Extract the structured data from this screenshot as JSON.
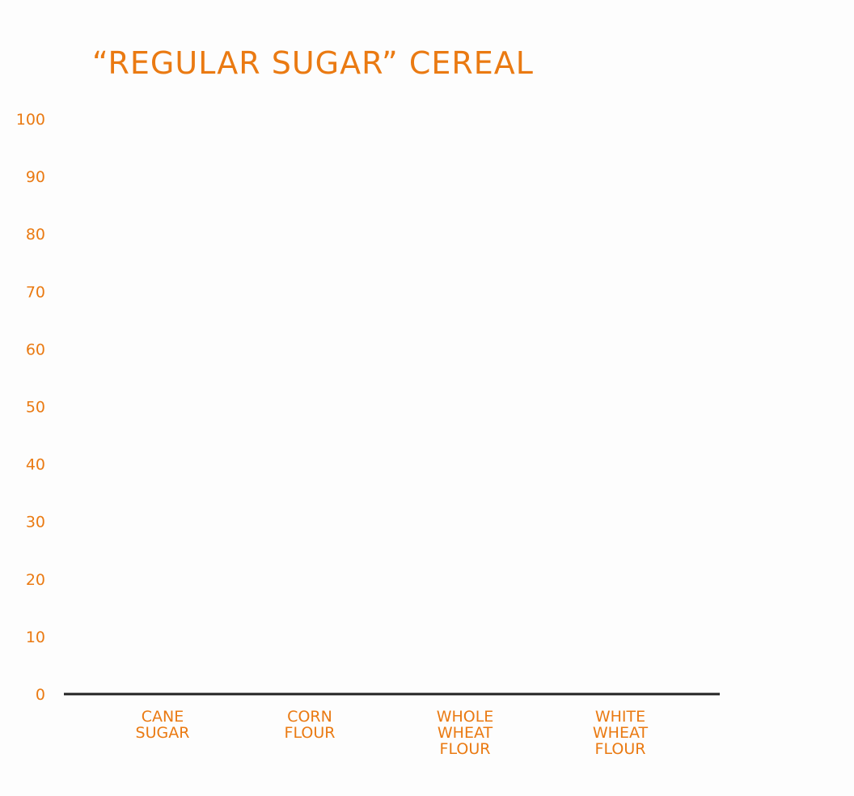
{
  "colors": {
    "text": "#ea7a12",
    "axis": "#222222",
    "background": "#fdfdfd"
  },
  "chart_data": {
    "type": "bar",
    "title": "“REGULAR SUGAR” CEREAL",
    "xlabel": "",
    "ylabel": "",
    "ylim": [
      0,
      100
    ],
    "yticks": [
      0,
      10,
      20,
      30,
      40,
      50,
      60,
      70,
      80,
      90,
      100
    ],
    "ytick_labels": [
      "0",
      "10",
      "20",
      "30",
      "40",
      "50",
      "60",
      "70",
      "80",
      "90",
      "100"
    ],
    "categories": [
      [
        "CANE",
        "SUGAR"
      ],
      [
        "CORN",
        "FLOUR"
      ],
      [
        "WHOLE",
        "WHEAT",
        "FLOUR"
      ],
      [
        "WHITE",
        "WHEAT",
        "FLOUR"
      ]
    ],
    "values": [
      0,
      0,
      0,
      0
    ],
    "grid": false,
    "legend": "none"
  }
}
